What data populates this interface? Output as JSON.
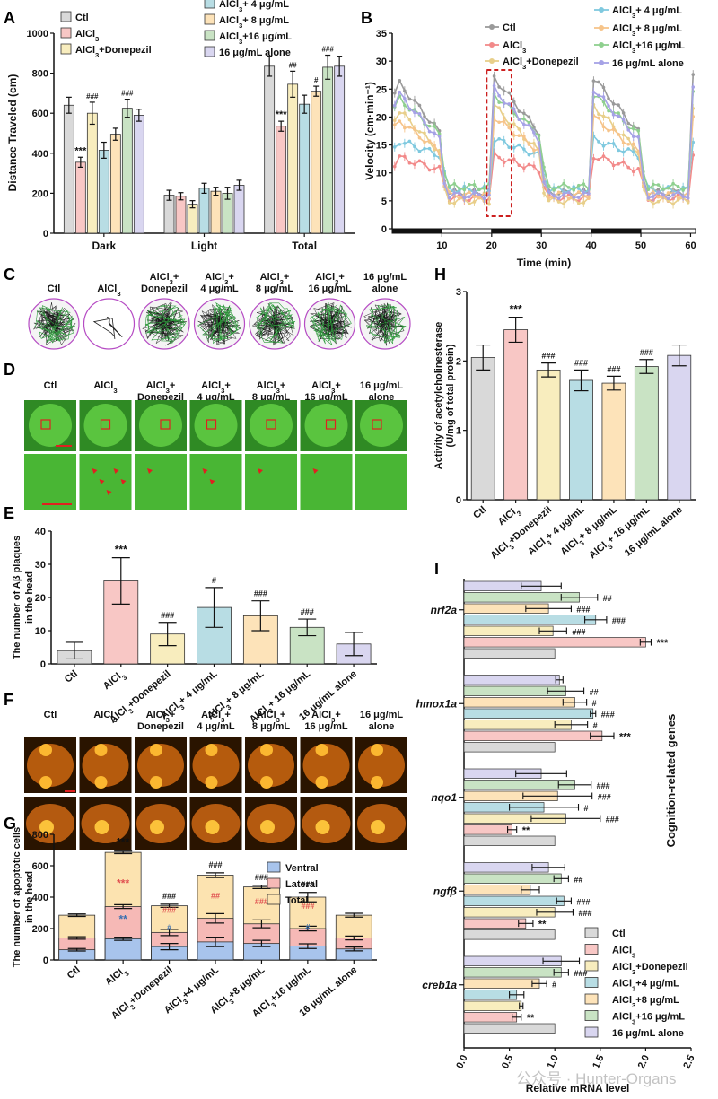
{
  "panels": {
    "A": "A",
    "B": "B",
    "C": "C",
    "D": "D",
    "E": "E",
    "F": "F",
    "G": "G",
    "H": "H",
    "I": "I"
  },
  "colors": {
    "ctl": "#d9d9d9",
    "alcl3": "#f8c7c5",
    "donepezil": "#f8edbe",
    "a4": "#b8dde4",
    "a8": "#fde3b9",
    "a16": "#c9e3c4",
    "alone": "#d9d6f0",
    "line_ctl": "#9a9a9a",
    "line_alcl3": "#f28a8a",
    "line_donepezil": "#e8cf8a",
    "line_a4": "#7fc9df",
    "line_a8": "#f6c48a",
    "line_a16": "#8fd08f",
    "line_alone": "#a6a2e6",
    "g_ventral": "#a8c4ec",
    "g_lateral": "#f6b9b6",
    "g_total": "#fce3b0",
    "sig_red": "#e05050",
    "sig_blue": "#3a6fb0"
  },
  "group_labels": {
    "ctl": "Ctl",
    "alcl3": "AlCl",
    "sub3": "3",
    "donepezil": "AlCl3+Donepezil",
    "a4": "AlCl3+ 4 μg/mL",
    "a8": "AlCl3+ 8 μg/mL",
    "a16": "AlCl3+16 μg/mL",
    "alone": "16 μg/mL alone"
  },
  "image_headers": [
    [
      "Ctl"
    ],
    [
      "AlCl3"
    ],
    [
      "AlCl3+",
      "Donepezil"
    ],
    [
      "AlCl3+",
      "4 μg/mL"
    ],
    [
      "AlCl3+",
      "8 μg/mL"
    ],
    [
      "AlCl3+",
      "16 μg/mL"
    ],
    [
      "16 μg/mL",
      "alone"
    ]
  ],
  "chart_data": [
    {
      "panel": "A",
      "type": "bar",
      "ylabel": "Distance Traveled (cm)",
      "ylim": [
        0,
        1000
      ],
      "yticks": [
        0,
        200,
        400,
        600,
        800,
        1000
      ],
      "categories": [
        "Dark",
        "Light",
        "Total"
      ],
      "legend": [
        "Ctl",
        "AlCl3",
        "AlCl3+Donepezil",
        "AlCl3+ 4 μg/mL",
        "AlCl3+ 8 μg/mL",
        "AlCl3+16 μg/mL",
        "16 μg/mL alone"
      ],
      "series_values": [
        [
          640,
          190,
          835
        ],
        [
          355,
          185,
          535
        ],
        [
          600,
          145,
          745
        ],
        [
          415,
          225,
          645
        ],
        [
          495,
          210,
          710
        ],
        [
          625,
          200,
          830
        ],
        [
          590,
          240,
          835
        ]
      ],
      "series_err": [
        [
          40,
          25,
          50
        ],
        [
          25,
          18,
          25
        ],
        [
          55,
          18,
          65
        ],
        [
          40,
          25,
          45
        ],
        [
          30,
          20,
          25
        ],
        [
          45,
          30,
          60
        ],
        [
          30,
          25,
          50
        ]
      ],
      "annotations": [
        [
          "",
          "",
          ""
        ],
        [
          "***",
          "",
          "***"
        ],
        [
          "###",
          "",
          "##"
        ],
        [
          "",
          "",
          ""
        ],
        [
          "",
          "",
          "#"
        ],
        [
          "###",
          "",
          "###"
        ],
        [
          "",
          "",
          ""
        ]
      ]
    },
    {
      "panel": "B",
      "type": "line",
      "xlabel": "Time  (min)",
      "ylabel": "Velocity (cm·min⁻¹)",
      "xlim": [
        0,
        61
      ],
      "ylim": [
        0,
        35
      ],
      "xticks": [
        10,
        20,
        30,
        40,
        50,
        60
      ],
      "yticks": [
        0,
        5,
        10,
        15,
        20,
        25,
        30,
        35
      ],
      "legend": [
        "Ctl",
        "AlCl3",
        "AlCl3+Donepezil",
        "AlCl3+ 4 μg/mL",
        "AlCl3+ 8 μg/mL",
        "AlCl3+16 μg/mL",
        "16 μg/mL alone"
      ],
      "light_dark": [
        [
          "dark",
          0,
          10
        ],
        [
          "light",
          10,
          20
        ],
        [
          "dark",
          20,
          30
        ],
        [
          "light",
          30,
          40
        ],
        [
          "dark",
          40,
          50
        ],
        [
          "light",
          50,
          61
        ]
      ],
      "highlight_x": [
        19,
        24
      ],
      "series": [
        {
          "name": "Ctl",
          "dark": 27,
          "light": 6.5
        },
        {
          "name": "AlCl3",
          "dark": 13,
          "light": 5.5
        },
        {
          "name": "AlCl3+Donepezil",
          "dark": 22,
          "light": 5
        },
        {
          "name": "AlCl3+ 4 μg/mL",
          "dark": 16,
          "light": 7
        },
        {
          "name": "AlCl3+ 8 μg/mL",
          "dark": 20,
          "light": 6
        },
        {
          "name": "AlCl3+16 μg/mL",
          "dark": 24,
          "light": 7.5
        },
        {
          "name": "16 μg/mL alone",
          "dark": 25,
          "light": 6
        }
      ]
    },
    {
      "panel": "E",
      "type": "bar",
      "ylabel": "The number of Aβ plaques in the head",
      "ylim": [
        0,
        40
      ],
      "yticks": [
        0,
        10,
        20,
        30,
        40
      ],
      "categories": [
        "Ctl",
        "AlCl3",
        "AlCl3+Donepezil",
        "AlCl3+ 4 μg/mL",
        "AlCl3+ 8 μg/mL",
        "AlCl3+ 16 μg/mL",
        "16 μg/mL alone"
      ],
      "values": [
        4,
        25,
        9,
        17,
        14.5,
        11,
        6
      ],
      "err": [
        2.5,
        7,
        3.5,
        6,
        4.5,
        2.5,
        3.5
      ],
      "annotations": [
        "",
        "***",
        "###",
        "#",
        "###",
        "###",
        ""
      ]
    },
    {
      "panel": "G",
      "type": "bar",
      "ylabel": "The number of apoptotic cells in the head",
      "ylim": [
        0,
        800
      ],
      "yticks": [
        0,
        200,
        400,
        600,
        800
      ],
      "categories": [
        "Ctl",
        "AlCl3",
        "AlCl3+Donepezil",
        "AlCl3+4 μg/mL",
        "AlCl3+8 μg/mL",
        "AlCl3+16 μg/mL",
        "16 μg/mL alone"
      ],
      "legend": [
        "Ventral",
        "Lateral",
        "Total"
      ],
      "ventral": [
        65,
        135,
        85,
        115,
        105,
        88,
        70
      ],
      "lateral": [
        140,
        340,
        175,
        265,
        230,
        200,
        140
      ],
      "total": [
        285,
        685,
        345,
        540,
        465,
        400,
        285
      ],
      "ventral_err": [
        8,
        10,
        20,
        30,
        20,
        15,
        12
      ],
      "lateral_err": [
        8,
        12,
        20,
        30,
        25,
        15,
        12
      ],
      "total_err": [
        8,
        8,
        10,
        15,
        10,
        30,
        12
      ],
      "total_annot": [
        "",
        "***",
        "###",
        "###",
        "###",
        "###",
        ""
      ],
      "lateral_annot": [
        "",
        "***",
        "###",
        "##",
        "###",
        "###",
        ""
      ],
      "ventral_annot": [
        "",
        "**",
        "#",
        "",
        "",
        "#",
        ""
      ]
    },
    {
      "panel": "H",
      "type": "bar",
      "ylabel": "Activity of acetylcholinesterase (U/mg of total protein)",
      "ylim": [
        0,
        3
      ],
      "yticks": [
        0,
        1,
        2,
        3
      ],
      "categories": [
        "Ctl",
        "AlCl3",
        "AlCl3+Donepezil",
        "AlCl3+ 4 μg/mL",
        "AlCl3+ 8 μg/mL",
        "AlCl3+ 16 μg/mL",
        "16 μg/mL alone"
      ],
      "values": [
        2.05,
        2.45,
        1.87,
        1.72,
        1.68,
        1.92,
        2.08
      ],
      "err": [
        0.18,
        0.18,
        0.1,
        0.15,
        0.1,
        0.1,
        0.15
      ],
      "annotations": [
        "",
        "***",
        "###",
        "###",
        "###",
        "###",
        ""
      ]
    },
    {
      "panel": "I",
      "type": "bar",
      "orientation": "horizontal",
      "xlabel": "Relative mRNA level",
      "side_label": "Cognition-related genes",
      "xlim": [
        0,
        2.5
      ],
      "xticks": [
        0,
        0.5,
        1.0,
        1.5,
        2.0,
        2.5
      ],
      "genes": [
        "nrf2a",
        "hmox1a",
        "nqo1",
        "ngfβ",
        "creb1a"
      ],
      "legend": [
        "Ctl",
        "AlCl3",
        "AlCl3+Donepezil",
        "AlCl3+4 μg/mL",
        "AlCl3+8 μg/mL",
        "AlCl3+16 μg/mL",
        "16 μg/mL alone"
      ],
      "values_top_to_bottom": [
        [
          0.85,
          1.27,
          0.93,
          1.45,
          0.98,
          2.0,
          1.0
        ],
        [
          1.05,
          1.12,
          1.22,
          1.42,
          1.18,
          1.52,
          1.0
        ],
        [
          0.85,
          1.22,
          1.03,
          0.88,
          1.12,
          0.53,
          1.0
        ],
        [
          0.93,
          1.07,
          0.73,
          1.1,
          1.0,
          0.68,
          1.0
        ],
        [
          1.07,
          1.07,
          0.83,
          0.58,
          0.63,
          0.58,
          1.0
        ]
      ],
      "err_top_to_bottom": [
        [
          0.22,
          0.2,
          0.25,
          0.12,
          0.15,
          0.06,
          0
        ],
        [
          0.04,
          0.2,
          0.13,
          0.03,
          0.18,
          0.13,
          0
        ],
        [
          0.28,
          0.18,
          0.38,
          0.38,
          0.38,
          0.05,
          0
        ],
        [
          0.18,
          0.08,
          0.1,
          0.08,
          0.2,
          0.08,
          0
        ],
        [
          0.2,
          0.08,
          0.08,
          0.08,
          0.02,
          0.05,
          0
        ]
      ],
      "annot_top_to_bottom": [
        [
          "",
          "##",
          "###",
          "###",
          "###",
          "***",
          ""
        ],
        [
          "",
          "##",
          "#",
          "###",
          "#",
          "***",
          ""
        ],
        [
          "",
          "###",
          "###",
          "#",
          "###",
          "**",
          ""
        ],
        [
          "",
          "##",
          "",
          "###",
          "###",
          "**",
          ""
        ],
        [
          "",
          "###",
          "#",
          "",
          "",
          "**",
          ""
        ]
      ]
    }
  ],
  "watermark": "公众号 · Hunter-Organs"
}
